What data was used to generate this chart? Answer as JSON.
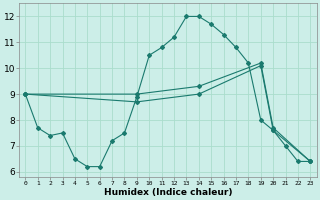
{
  "xlabel": "Humidex (Indice chaleur)",
  "bg_color": "#cceee8",
  "line_color": "#1a7a6e",
  "grid_color": "#aaddcc",
  "xlim": [
    -0.5,
    23.5
  ],
  "ylim": [
    5.8,
    12.5
  ],
  "yticks": [
    6,
    7,
    8,
    9,
    10,
    11,
    12
  ],
  "xticks": [
    0,
    1,
    2,
    3,
    4,
    5,
    6,
    7,
    8,
    9,
    10,
    11,
    12,
    13,
    14,
    15,
    16,
    17,
    18,
    19,
    20,
    21,
    22,
    23
  ],
  "series1_x": [
    0,
    1,
    2,
    3,
    4,
    5,
    6,
    7,
    8,
    9,
    10,
    11,
    12,
    13,
    14,
    15,
    16,
    17,
    18,
    19,
    20,
    21,
    22,
    23
  ],
  "series1_y": [
    9.0,
    7.7,
    7.4,
    7.5,
    6.5,
    6.2,
    6.2,
    7.2,
    7.5,
    8.9,
    10.5,
    10.8,
    11.2,
    12.0,
    12.0,
    11.7,
    11.3,
    10.8,
    10.2,
    8.0,
    7.6,
    7.0,
    6.4,
    6.4
  ],
  "series2_x": [
    0,
    9,
    14,
    19,
    20,
    23
  ],
  "series2_y": [
    9.0,
    9.0,
    9.3,
    10.2,
    7.7,
    6.4
  ],
  "series3_x": [
    0,
    9,
    14,
    19,
    20,
    23
  ],
  "series3_y": [
    9.0,
    8.7,
    9.0,
    10.1,
    7.6,
    6.4
  ]
}
